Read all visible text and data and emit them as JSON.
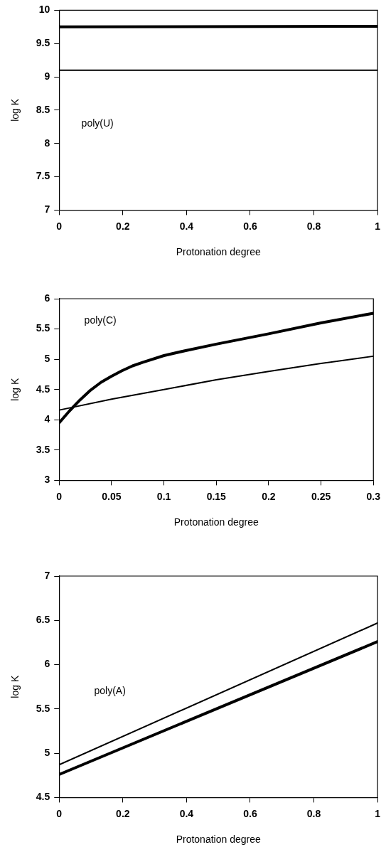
{
  "chart_data": [
    {
      "type": "line",
      "xlabel": "Protonation degree",
      "ylabel": "log K",
      "annotations": [
        "poly(U)"
      ],
      "xlim": [
        0,
        1
      ],
      "xticks": [
        0,
        0.2,
        0.4,
        0.6,
        0.8,
        1
      ],
      "ylim": [
        7,
        10
      ],
      "yticks": [
        7,
        7.5,
        8,
        8.5,
        9,
        9.5,
        10
      ],
      "grid": false,
      "legend": false,
      "marker": "none",
      "line_style": "solid",
      "series": [
        {
          "color": "#000000",
          "x": [
            0,
            1
          ],
          "values": [
            9.75,
            9.76
          ]
        },
        {
          "color": "#000000",
          "x": [
            0,
            1
          ],
          "values": [
            9.1,
            9.1
          ]
        }
      ]
    },
    {
      "type": "line",
      "xlabel": "Protonation degree",
      "ylabel": "log K",
      "annotations": [
        "poly(C)"
      ],
      "xlim": [
        0,
        0.3
      ],
      "xticks": [
        0,
        0.05,
        0.1,
        0.15,
        0.2,
        0.25,
        0.3
      ],
      "ylim": [
        3,
        6
      ],
      "yticks": [
        3,
        3.5,
        4,
        4.5,
        5,
        5.5,
        6
      ],
      "grid": false,
      "legend": false,
      "marker": "none",
      "line_style": "solid",
      "series": [
        {
          "color": "#000000",
          "x": [
            0,
            0.01,
            0.02,
            0.03,
            0.04,
            0.05,
            0.06,
            0.07,
            0.08,
            0.1,
            0.12,
            0.15,
            0.2,
            0.25,
            0.3
          ],
          "values": [
            3.95,
            4.15,
            4.33,
            4.49,
            4.62,
            4.72,
            4.81,
            4.89,
            4.95,
            5.06,
            5.14,
            5.25,
            5.42,
            5.6,
            5.76
          ]
        },
        {
          "color": "#000000",
          "x": [
            0,
            0.05,
            0.1,
            0.15,
            0.2,
            0.25,
            0.3
          ],
          "values": [
            4.16,
            4.34,
            4.5,
            4.66,
            4.8,
            4.93,
            5.05
          ]
        }
      ]
    },
    {
      "type": "line",
      "xlabel": "Protonation degree",
      "ylabel": "log K",
      "annotations": [
        "poly(A)"
      ],
      "xlim": [
        0,
        1
      ],
      "xticks": [
        0,
        0.2,
        0.4,
        0.6,
        0.8,
        1
      ],
      "ylim": [
        4.5,
        7
      ],
      "yticks": [
        4.5,
        5,
        5.5,
        6,
        6.5,
        7
      ],
      "grid": false,
      "legend": false,
      "marker": "none",
      "line_style": "solid",
      "series": [
        {
          "color": "#000000",
          "x": [
            0,
            1
          ],
          "values": [
            4.76,
            6.26
          ]
        },
        {
          "color": "#000000",
          "x": [
            0,
            1
          ],
          "values": [
            4.87,
            6.47
          ]
        }
      ]
    }
  ]
}
